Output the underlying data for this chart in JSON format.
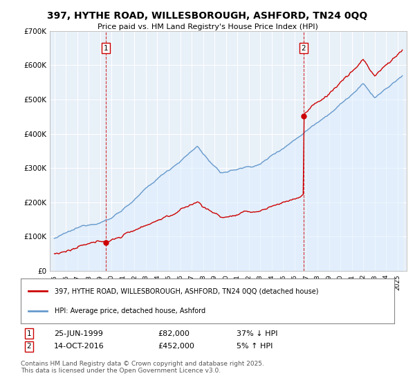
{
  "title": "397, HYTHE ROAD, WILLESBOROUGH, ASHFORD, TN24 0QQ",
  "subtitle": "Price paid vs. HM Land Registry's House Price Index (HPI)",
  "property_label": "397, HYTHE ROAD, WILLESBOROUGH, ASHFORD, TN24 0QQ (detached house)",
  "hpi_label": "HPI: Average price, detached house, Ashford",
  "sale1_date": "25-JUN-1999",
  "sale1_price": 82000,
  "sale1_price_str": "£82,000",
  "sale1_pct": "37% ↓ HPI",
  "sale2_date": "14-OCT-2016",
  "sale2_price": 452000,
  "sale2_price_str": "£452,000",
  "sale2_pct": "5% ↑ HPI",
  "footnote": "Contains HM Land Registry data © Crown copyright and database right 2025.\nThis data is licensed under the Open Government Licence v3.0.",
  "property_color": "#cc0000",
  "hpi_color": "#6699cc",
  "hpi_fill_color": "#ddeeff",
  "vline_color": "#cc0000",
  "ylim": [
    0,
    700000
  ],
  "yticks": [
    0,
    100000,
    200000,
    300000,
    400000,
    500000,
    600000,
    700000
  ],
  "ytick_labels": [
    "£0",
    "£100K",
    "£200K",
    "£300K",
    "£400K",
    "£500K",
    "£600K",
    "£700K"
  ],
  "background_color": "#ffffff",
  "plot_bg_color": "#e8f0f8",
  "grid_color": "#ffffff",
  "sale1_yr": 1999.48,
  "sale2_yr": 2016.79
}
